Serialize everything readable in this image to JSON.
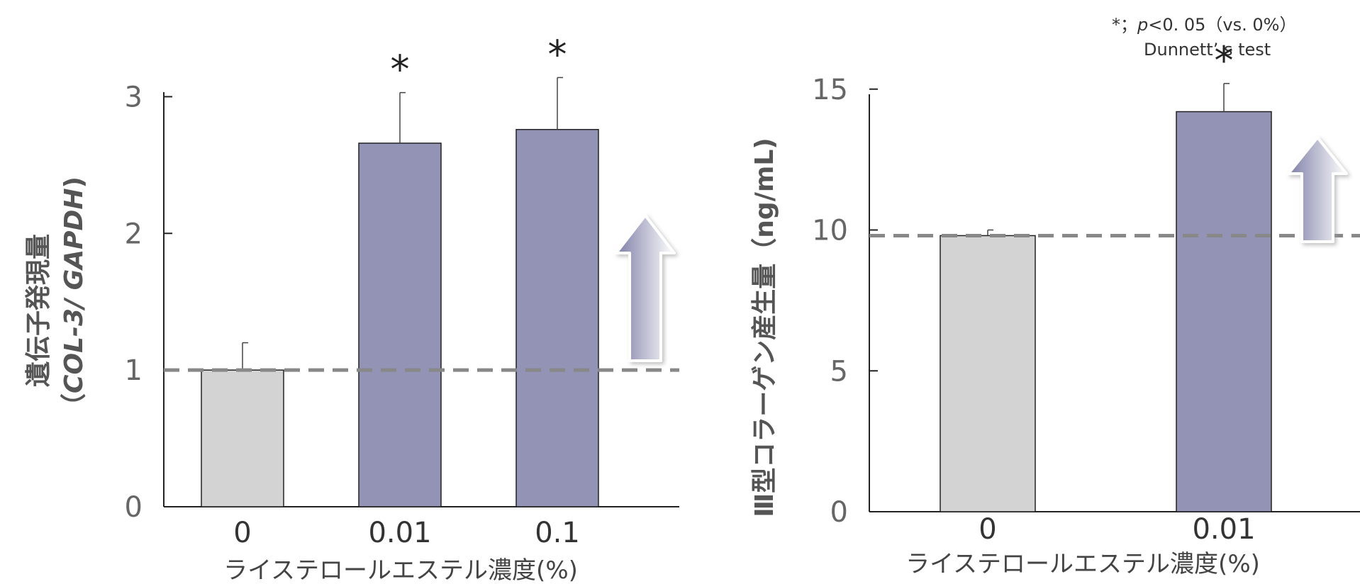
{
  "note": {
    "line1_prefix": "*；",
    "line1_p": "p",
    "line1_suffix": "<0. 05（vs. 0%）",
    "line2": "Dunnett’ s test"
  },
  "chart_data": [
    {
      "type": "bar",
      "categories": [
        "0",
        "0.01",
        "0.1"
      ],
      "values": [
        1.0,
        2.66,
        2.76
      ],
      "errors": [
        0.2,
        0.37,
        0.38
      ],
      "significant": [
        false,
        true,
        true
      ],
      "significance_mark": "*",
      "ylim": [
        0,
        3.5
      ],
      "yticks": [
        "0",
        "1",
        "2",
        "3"
      ],
      "xlabel": "ライステロールエステル濃度(%)",
      "ylabel_line1": "遺伝子発現量",
      "ylabel_line2_open": "（",
      "ylabel_line2_gene": "COL-3/ GAPDH",
      "ylabel_line2_close": ")",
      "reference_line": 1.0,
      "colors": {
        "control": "#d3d3d3",
        "treated": "#9393b5",
        "reference": "#888888"
      }
    },
    {
      "type": "bar",
      "categories": [
        "0",
        "0.01"
      ],
      "values": [
        9.8,
        14.2
      ],
      "errors": [
        0.2,
        1.0
      ],
      "significant": [
        false,
        true
      ],
      "significance_mark": "*",
      "ylim": [
        0,
        16
      ],
      "yticks": [
        "0",
        "5",
        "10",
        "15"
      ],
      "xlabel": "ライステロールエステル濃度(%)",
      "ylabel": "Ⅲ型コラーゲン産生量（ng/mL)",
      "reference_line": 9.8,
      "colors": {
        "control": "#d3d3d3",
        "treated": "#9393b5",
        "reference": "#888888"
      }
    }
  ]
}
